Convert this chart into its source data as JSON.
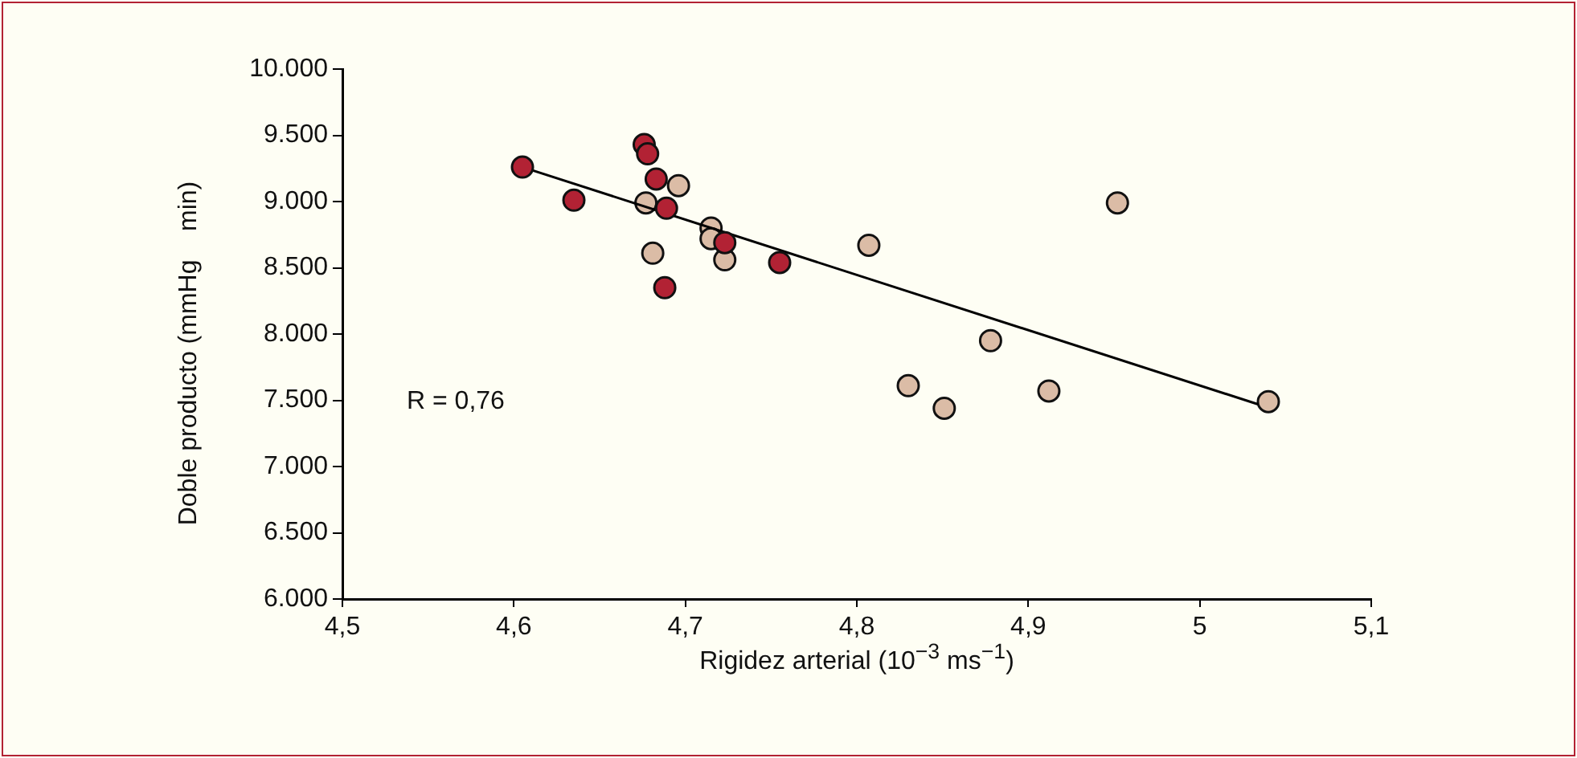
{
  "chart_data": {
    "type": "scatter",
    "xlabel": "Rigidez arterial (10$^{−3}$ ms$^{−1}$)",
    "ylabel": "Doble producto (mmHg    min)",
    "xlim": [
      4.5,
      5.1
    ],
    "xticks": [
      {
        "value": 4.5,
        "label": "4,5"
      },
      {
        "value": 4.6,
        "label": "4,6"
      },
      {
        "value": 4.7,
        "label": "4,7"
      },
      {
        "value": 4.8,
        "label": "4,8"
      },
      {
        "value": 4.9,
        "label": "4,9"
      },
      5,
      {
        "value": 5.1,
        "label": "5,1"
      }
    ],
    "ylim": [
      6000,
      10000
    ],
    "yticks": [
      {
        "value": 6000,
        "label": "6.000"
      },
      {
        "value": 6500,
        "label": "6.500"
      },
      {
        "value": 7000,
        "label": "7.000"
      },
      {
        "value": 7500,
        "label": "7.500"
      },
      {
        "value": 8000,
        "label": "8.000"
      },
      {
        "value": 8500,
        "label": "8.500"
      },
      {
        "value": 9000,
        "label": "9.000"
      },
      {
        "value": 9500,
        "label": "9.500"
      },
      {
        "value": 10000,
        "label": "10.000"
      }
    ],
    "grid": false,
    "legend": false,
    "marker": "circle",
    "annotations": [
      "R = 0,76"
    ],
    "series": [
      {
        "color": "#b22234",
        "x": [
          4.605,
          4.676,
          4.678,
          4.683,
          4.689,
          4.723,
          4.755,
          4.688,
          4.635,
          null,
          null
        ],
        "values": [
          9260,
          9430,
          9360,
          9170,
          8950,
          8690,
          8540,
          8350,
          9010,
          null,
          null
        ]
      },
      {
        "color": "#dbbca6",
        "x": [
          4.696,
          4.677,
          4.681,
          4.715,
          4.715,
          4.723,
          4.807,
          4.952,
          4.878,
          4.83,
          4.851,
          4.912,
          5.04
        ],
        "values": [
          9120,
          8990,
          8610,
          8800,
          8720,
          8560,
          8670,
          8990,
          7950,
          7610,
          7440,
          7570,
          7490
        ]
      },
      {
        "type": "line",
        "color": "#000000",
        "marker": "none",
        "x": [
          4.605,
          5.034
        ],
        "values": [
          9260,
          7470
        ]
      }
    ]
  }
}
